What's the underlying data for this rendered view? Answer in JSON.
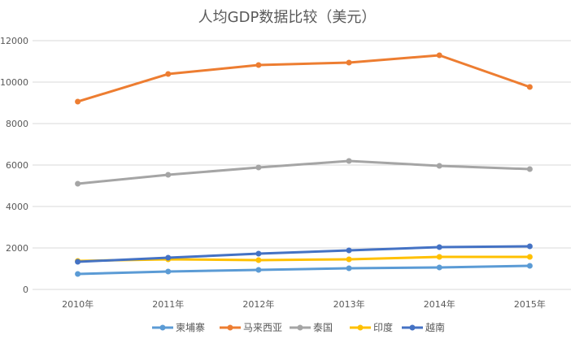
{
  "chart_data": {
    "type": "line",
    "title": "人均GDP数据比较（美元）",
    "categories": [
      "2010年",
      "2011年",
      "2012年",
      "2013年",
      "2014年",
      "2015年"
    ],
    "ylim": [
      0,
      12000
    ],
    "yticks": [
      0,
      2000,
      4000,
      6000,
      8000,
      10000,
      12000
    ],
    "grid": true,
    "legend": "bottom",
    "series": [
      {
        "name": "柬埔寨",
        "color": "#5B9BD5",
        "values": [
          745,
          863,
          941,
          1020,
          1059,
          1137
        ]
      },
      {
        "name": "马来西亚",
        "color": "#ED7D31",
        "values": [
          9059,
          10392,
          10824,
          10941,
          11294,
          9765
        ]
      },
      {
        "name": "泰国",
        "color": "#A5A5A5",
        "values": [
          5098,
          5529,
          5882,
          6196,
          5961,
          5804
        ]
      },
      {
        "name": "印度",
        "color": "#FFC000",
        "values": [
          1373,
          1451,
          1412,
          1451,
          1569,
          1569
        ]
      },
      {
        "name": "越南",
        "color": "#4472C4",
        "values": [
          1333,
          1529,
          1725,
          1882,
          2039,
          2078
        ]
      }
    ]
  }
}
